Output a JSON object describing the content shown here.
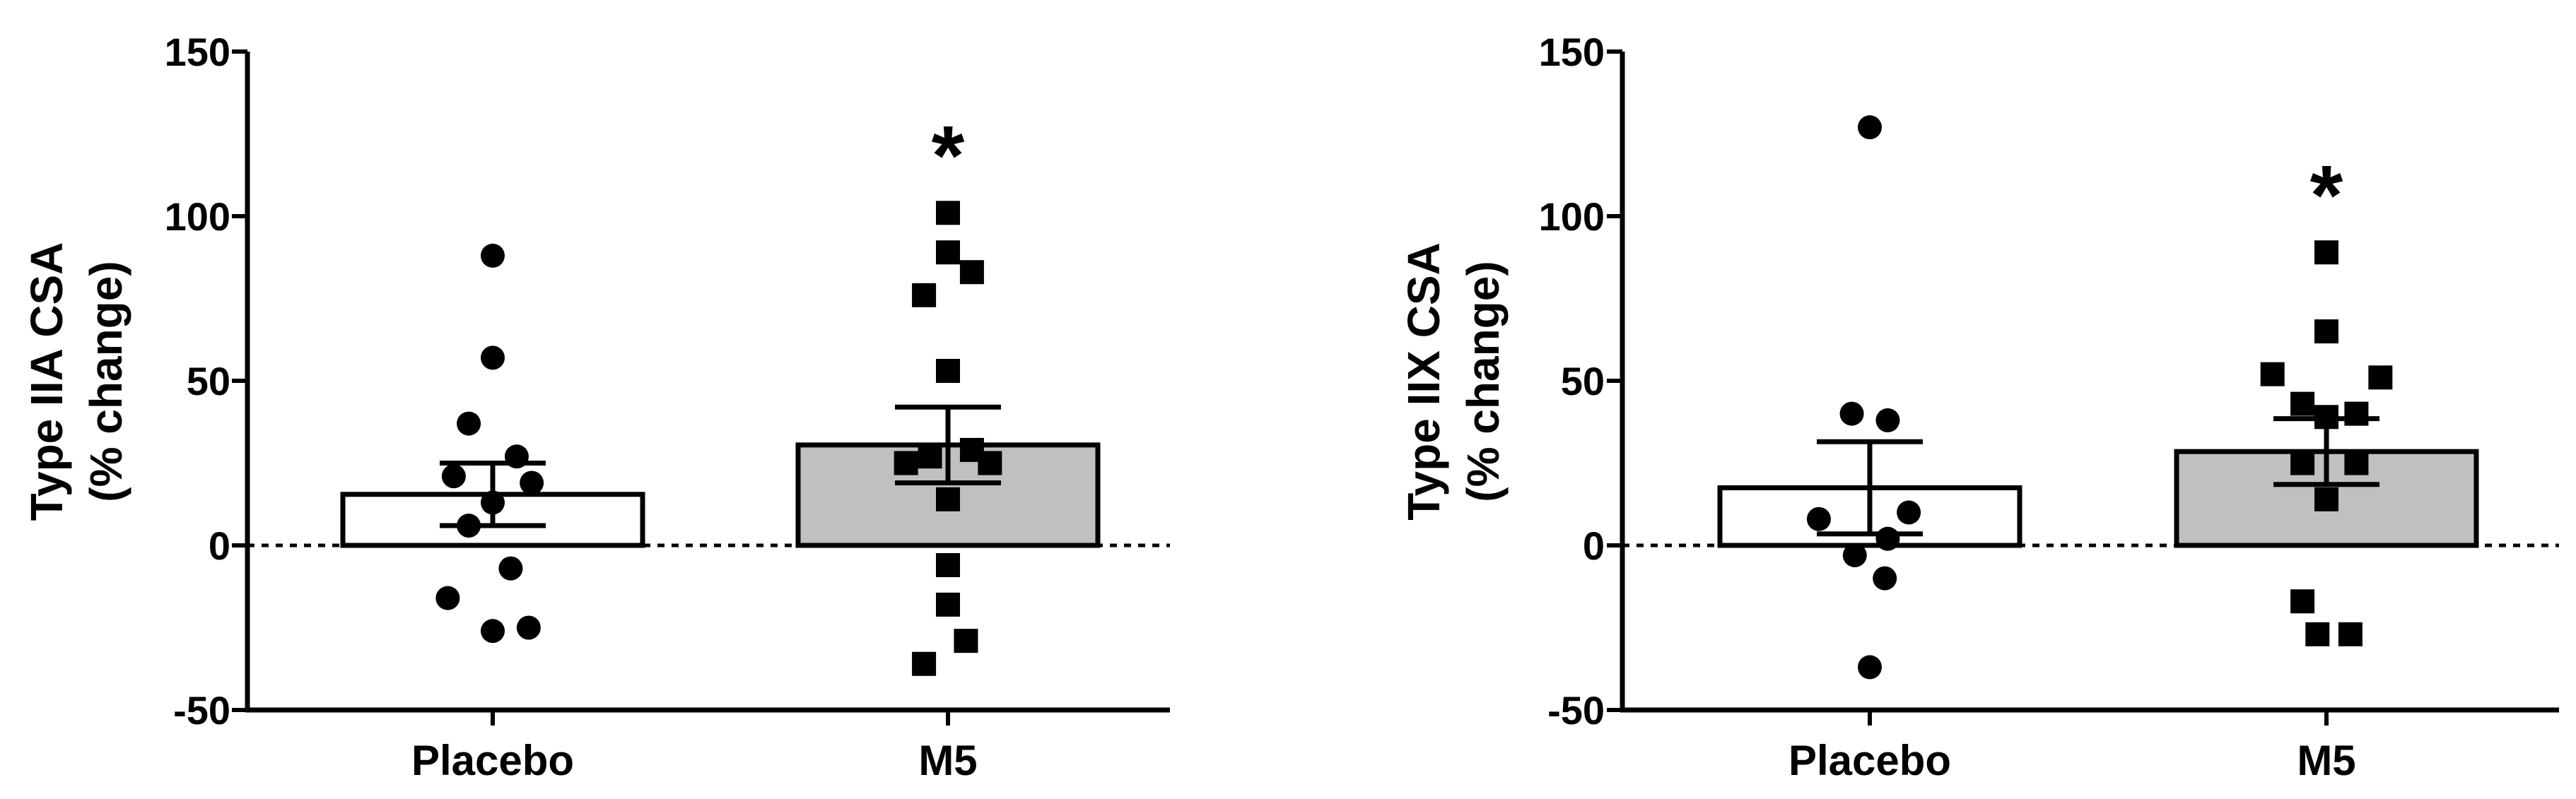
{
  "chart_data": [
    {
      "type": "bar",
      "ylabel_line1": "Type IIA CSA",
      "ylabel_line2": "(% change)",
      "ylim": [
        -50,
        150
      ],
      "yticks": [
        -50,
        0,
        50,
        100,
        150
      ],
      "categories": [
        "Placebo",
        "M5"
      ],
      "bar_colors": [
        "#ffffff",
        "#c0c0c0"
      ],
      "means": [
        15.5,
        30.5
      ],
      "sem": [
        9.5,
        11.5
      ],
      "significance": [
        "",
        "*"
      ],
      "reference_line_y": 0,
      "points": [
        {
          "marker": "circle",
          "values": [
            88,
            57,
            37,
            27,
            21,
            19,
            13,
            6,
            -7,
            -16,
            -25,
            -26
          ],
          "xoffsets": [
            0,
            0,
            -0.08,
            0.08,
            -0.13,
            0.13,
            0,
            -0.08,
            0.06,
            -0.15,
            0.12,
            0
          ]
        },
        {
          "marker": "square",
          "values": [
            101,
            89,
            83,
            76,
            53,
            29,
            27,
            25,
            25,
            14,
            -6,
            -18,
            -29,
            -36
          ],
          "xoffsets": [
            0,
            0,
            0.08,
            -0.08,
            0,
            0.08,
            -0.06,
            -0.14,
            0.14,
            0,
            0,
            0,
            0.06,
            -0.08
          ]
        }
      ]
    },
    {
      "type": "bar",
      "ylabel_line1": "Type IIX CSA",
      "ylabel_line2": "(% change)",
      "ylim": [
        -50,
        150
      ],
      "yticks": [
        -50,
        0,
        50,
        100,
        150
      ],
      "categories": [
        "Placebo",
        "M5"
      ],
      "bar_colors": [
        "#ffffff",
        "#c0c0c0"
      ],
      "means": [
        17.5,
        28.5
      ],
      "sem": [
        14,
        10
      ],
      "significance": [
        "",
        "*"
      ],
      "reference_line_y": 0,
      "points": [
        {
          "marker": "circle",
          "values": [
            127,
            40,
            38,
            10,
            8,
            2,
            -3,
            -10,
            -37
          ],
          "xoffsets": [
            0,
            -0.06,
            0.06,
            0.13,
            -0.17,
            0.06,
            -0.05,
            0.05,
            0
          ]
        },
        {
          "marker": "square",
          "values": [
            89,
            65,
            52,
            51,
            43,
            40,
            39,
            25,
            25,
            14,
            -17,
            -27,
            -27
          ],
          "xoffsets": [
            0,
            0,
            -0.18,
            0.18,
            -0.08,
            0.1,
            0,
            -0.08,
            0.1,
            0,
            -0.08,
            -0.03,
            0.08
          ]
        }
      ]
    }
  ]
}
